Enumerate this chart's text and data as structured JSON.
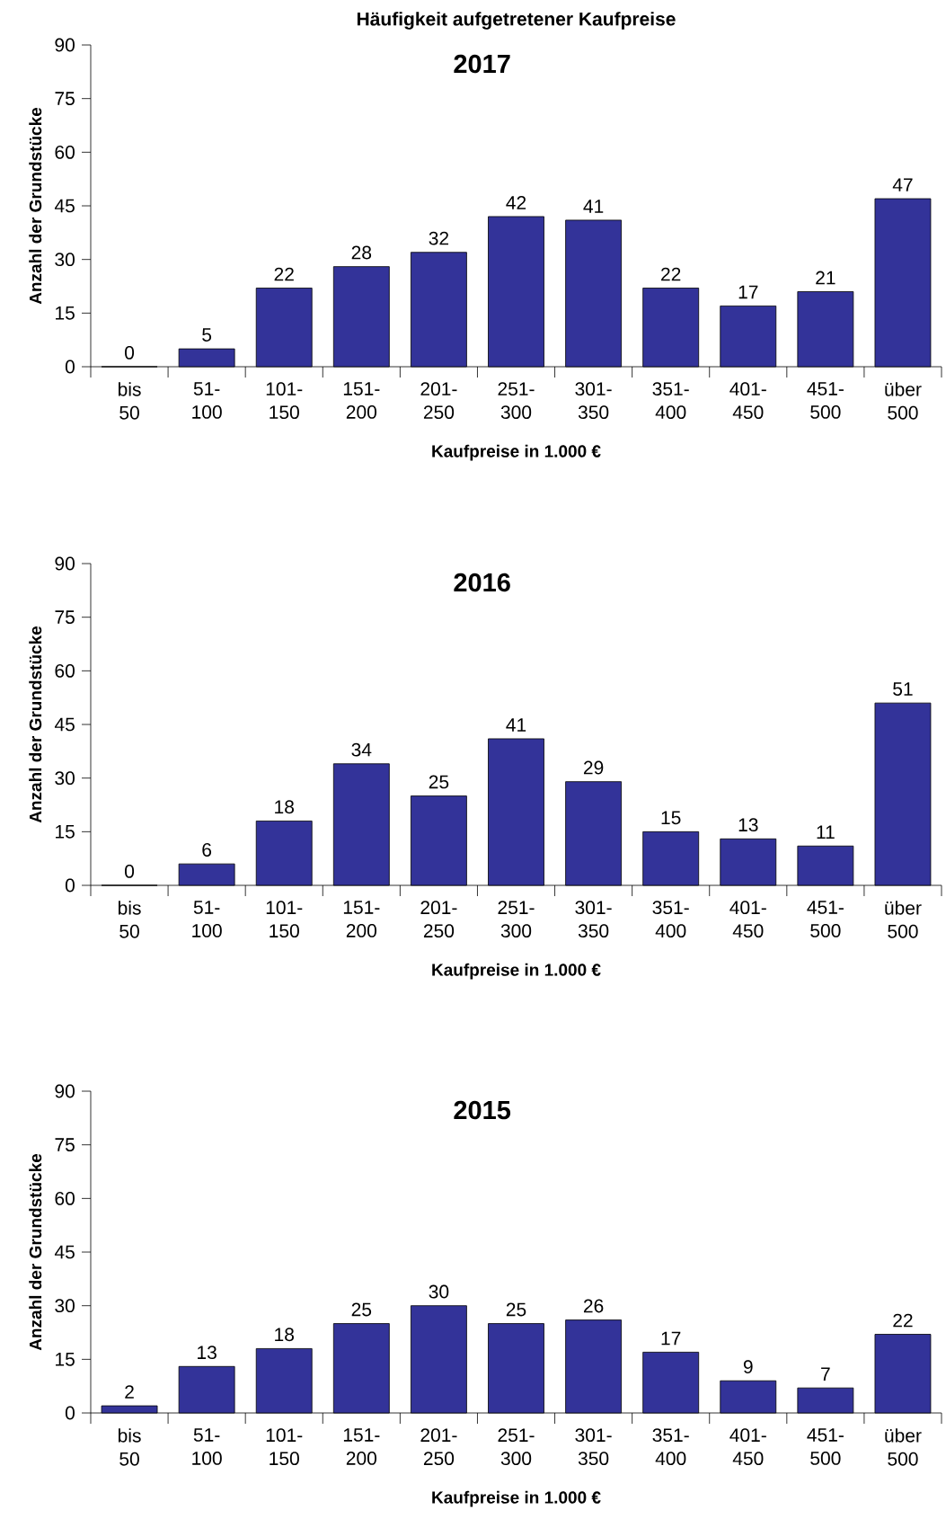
{
  "chart_data": [
    {
      "type": "bar",
      "title": "Häufigkeit aufgetretener Kaufpreise",
      "subtitle": "2017",
      "xlabel": "Kaufpreise in 1.000 €",
      "ylabel": "Anzahl der Grundstücke",
      "categories": [
        "bis 50",
        "51-100",
        "101-150",
        "151-200",
        "201-250",
        "251-300",
        "301-350",
        "351-400",
        "401-450",
        "451-500",
        "über 500"
      ],
      "values": [
        0,
        5,
        22,
        28,
        32,
        42,
        41,
        22,
        17,
        21,
        47
      ],
      "color": "#333399",
      "ylim": [
        0,
        90
      ],
      "yticks": [
        0,
        15,
        30,
        45,
        60,
        75,
        90
      ],
      "data_labels": true
    },
    {
      "type": "bar",
      "subtitle": "2016",
      "xlabel": "Kaufpreise in 1.000 €",
      "ylabel": "Anzahl der Grundstücke",
      "categories": [
        "bis 50",
        "51-100",
        "101-150",
        "151-200",
        "201-250",
        "251-300",
        "301-350",
        "351-400",
        "401-450",
        "451-500",
        "über 500"
      ],
      "values": [
        0,
        6,
        18,
        34,
        25,
        41,
        29,
        15,
        13,
        11,
        51
      ],
      "color": "#333399",
      "ylim": [
        0,
        90
      ],
      "yticks": [
        0,
        15,
        30,
        45,
        60,
        75,
        90
      ],
      "data_labels": true
    },
    {
      "type": "bar",
      "subtitle": "2015",
      "xlabel": "Kaufpreise in 1.000 €",
      "ylabel": "Anzahl der Grundstücke",
      "categories": [
        "bis 50",
        "51-100",
        "101-150",
        "151-200",
        "201-250",
        "251-300",
        "301-350",
        "351-400",
        "401-450",
        "451-500",
        "über 500"
      ],
      "values": [
        2,
        13,
        18,
        25,
        30,
        25,
        26,
        17,
        9,
        7,
        22
      ],
      "color": "#333399",
      "ylim": [
        0,
        90
      ],
      "yticks": [
        0,
        15,
        30,
        45,
        60,
        75,
        90
      ],
      "data_labels": true
    }
  ]
}
